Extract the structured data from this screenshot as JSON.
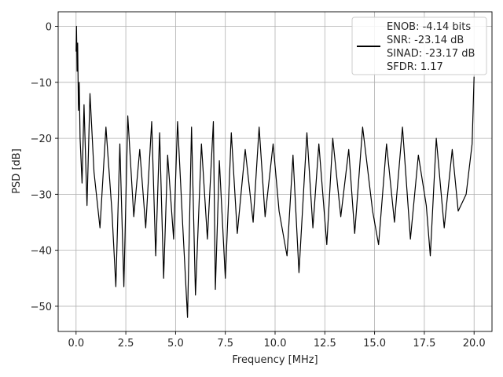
{
  "chart_data": {
    "type": "line",
    "title": "",
    "xlabel": "Frequency [MHz]",
    "ylabel": "PSD [dB]",
    "xlim": [
      -0.9,
      20.9
    ],
    "ylim": [
      -54.5,
      2.6
    ],
    "xticks": [
      0.0,
      2.5,
      5.0,
      7.5,
      10.0,
      12.5,
      15.0,
      17.5,
      20.0
    ],
    "xtick_labels": [
      "0.0",
      "2.5",
      "5.0",
      "7.5",
      "10.0",
      "12.5",
      "15.0",
      "17.5",
      "20.0"
    ],
    "yticks": [
      0,
      -10,
      -20,
      -30,
      -40,
      -50
    ],
    "ytick_labels": [
      "0",
      "−10",
      "−20",
      "−30",
      "−40",
      "−50"
    ],
    "grid": true,
    "legend_position": "top-right",
    "line_color": "#000000",
    "series": [
      {
        "name": "",
        "x": [
          0.0,
          0.02,
          0.05,
          0.08,
          0.12,
          0.16,
          0.2,
          0.3,
          0.4,
          0.55,
          0.7,
          0.9,
          1.2,
          1.5,
          1.8,
          2.0,
          2.2,
          2.4,
          2.6,
          2.9,
          3.2,
          3.5,
          3.8,
          4.0,
          4.2,
          4.4,
          4.6,
          4.9,
          5.1,
          5.35,
          5.6,
          5.8,
          6.0,
          6.3,
          6.6,
          6.9,
          7.0,
          7.2,
          7.5,
          7.8,
          8.1,
          8.5,
          8.9,
          9.2,
          9.5,
          9.9,
          10.2,
          10.6,
          10.9,
          11.2,
          11.6,
          11.9,
          12.2,
          12.6,
          12.9,
          13.3,
          13.7,
          14.0,
          14.4,
          14.9,
          15.2,
          15.6,
          16.0,
          16.4,
          16.8,
          17.2,
          17.6,
          17.8,
          18.1,
          18.5,
          18.9,
          19.2,
          19.6,
          19.9,
          20.0
        ],
        "y": [
          -4.5,
          0.0,
          -8.0,
          -3.0,
          -15.0,
          -10.0,
          -20.0,
          -28.0,
          -14.0,
          -32.0,
          -12.0,
          -26.0,
          -36.0,
          -18.0,
          -33.0,
          -46.5,
          -21.0,
          -46.5,
          -16.0,
          -34.0,
          -22.0,
          -36.0,
          -17.0,
          -41.0,
          -19.0,
          -45.0,
          -23.0,
          -38.0,
          -17.0,
          -35.0,
          -52.0,
          -18.0,
          -48.0,
          -21.0,
          -38.0,
          -17.0,
          -47.0,
          -24.0,
          -45.0,
          -19.0,
          -37.0,
          -22.0,
          -35.0,
          -18.0,
          -34.0,
          -21.0,
          -33.0,
          -41.0,
          -23.0,
          -44.0,
          -19.0,
          -36.0,
          -21.0,
          -39.0,
          -20.0,
          -34.0,
          -22.0,
          -37.0,
          -18.0,
          -33.0,
          -39.0,
          -21.0,
          -35.0,
          -18.0,
          -38.0,
          -23.0,
          -32.0,
          -41.0,
          -20.0,
          -36.0,
          -22.0,
          -33.0,
          -30.0,
          -21.0,
          -9.0
        ]
      }
    ],
    "legend_entries": [
      "ENOB: -4.14 bits",
      "SNR: -23.14 dB",
      "SINAD: -23.17 dB",
      "SFDR: 1.17"
    ]
  }
}
